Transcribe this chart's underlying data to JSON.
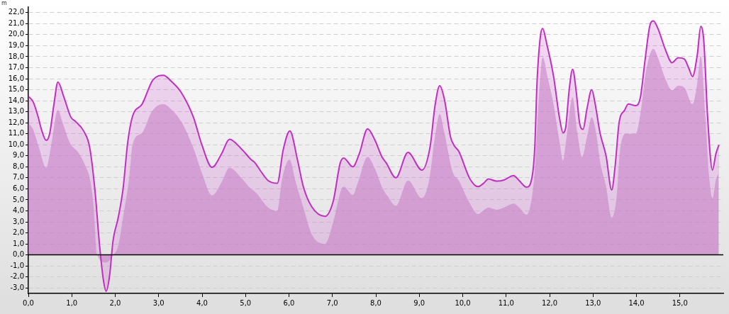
{
  "chart_data": {
    "type": "area",
    "ylabel": "m",
    "xlim": [
      0,
      16
    ],
    "ylim": [
      -3.5,
      22.5
    ],
    "xticks": [
      {
        "value": 0,
        "label": "0,0"
      },
      {
        "value": 1,
        "label": "1,0"
      },
      {
        "value": 2,
        "label": "2,0"
      },
      {
        "value": 3,
        "label": "3,0"
      },
      {
        "value": 4,
        "label": "4,0"
      },
      {
        "value": 5,
        "label": "5,0"
      },
      {
        "value": 6,
        "label": "6,0"
      },
      {
        "value": 7,
        "label": "7,0"
      },
      {
        "value": 8,
        "label": "8,0"
      },
      {
        "value": 9,
        "label": "9,0"
      },
      {
        "value": 10,
        "label": "10,0"
      },
      {
        "value": 11,
        "label": "11,0"
      },
      {
        "value": 12,
        "label": "12,0"
      },
      {
        "value": 13,
        "label": "13,0"
      },
      {
        "value": 14,
        "label": "14,0"
      },
      {
        "value": 15,
        "label": "15,0"
      }
    ],
    "yticks": [
      {
        "value": -3,
        "label": "-3,0"
      },
      {
        "value": -2,
        "label": "-2,0"
      },
      {
        "value": -1,
        "label": "-1,0"
      },
      {
        "value": 0,
        "label": "0,0"
      },
      {
        "value": 1,
        "label": "1,0"
      },
      {
        "value": 2,
        "label": "2,0"
      },
      {
        "value": 3,
        "label": "3,0"
      },
      {
        "value": 4,
        "label": "4,0"
      },
      {
        "value": 5,
        "label": "5,0"
      },
      {
        "value": 6,
        "label": "6,0"
      },
      {
        "value": 7,
        "label": "7,0"
      },
      {
        "value": 8,
        "label": "8,0"
      },
      {
        "value": 9,
        "label": "9,0"
      },
      {
        "value": 10,
        "label": "10,0"
      },
      {
        "value": 11,
        "label": "11,0"
      },
      {
        "value": 12,
        "label": "12,0"
      },
      {
        "value": 13,
        "label": "13,0"
      },
      {
        "value": 14,
        "label": "14,0"
      },
      {
        "value": 15,
        "label": "15,0"
      },
      {
        "value": 16,
        "label": "16,0"
      },
      {
        "value": 17,
        "label": "17,0"
      },
      {
        "value": 18,
        "label": "18,0"
      },
      {
        "value": 19,
        "label": "19,0"
      },
      {
        "value": 20,
        "label": "20,0"
      },
      {
        "value": 21,
        "label": "21,0"
      },
      {
        "value": 22,
        "label": "22,0"
      }
    ],
    "grid": "y",
    "marker": "none",
    "line_style": "solid",
    "ref_lines": [
      {
        "axis": "y",
        "value": 0,
        "color": "#000000"
      }
    ],
    "series": [
      {
        "color": "#c030c0",
        "x": [
          0,
          0.11,
          0.22,
          0.3,
          0.41,
          0.49,
          0.59,
          0.68,
          0.82,
          0.98,
          1.09,
          1.28,
          1.41,
          1.53,
          1.64,
          1.73,
          1.79,
          1.87,
          1.95,
          2.07,
          2.18,
          2.29,
          2.4,
          2.62,
          2.87,
          3.11,
          3.28,
          3.52,
          3.8,
          3.99,
          4.23,
          4.45,
          4.63,
          4.91,
          5.13,
          5.21,
          5.35,
          5.52,
          5.73,
          5.87,
          6.02,
          6.2,
          6.33,
          6.52,
          6.83,
          7.02,
          7.18,
          7.26,
          7.47,
          7.62,
          7.81,
          7.97,
          8.14,
          8.24,
          8.46,
          8.74,
          9.06,
          9.25,
          9.36,
          9.47,
          9.58,
          9.72,
          9.8,
          9.91,
          10.16,
          10.35,
          10.48,
          10.59,
          10.78,
          10.95,
          11.17,
          11.3,
          11.47,
          11.6,
          11.66,
          11.71,
          11.79,
          11.84,
          11.93,
          12.09,
          12.23,
          12.31,
          12.37,
          12.45,
          12.53,
          12.61,
          12.69,
          12.77,
          12.86,
          12.97,
          13.05,
          13.16,
          13.3,
          13.43,
          13.51,
          13.6,
          13.73,
          13.81,
          13.98,
          14.09,
          14.2,
          14.31,
          14.39,
          14.5,
          14.66,
          14.82,
          14.96,
          15.1,
          15.21,
          15.29,
          15.4,
          15.48,
          15.55,
          15.64,
          15.75,
          15.83,
          15.9
        ],
        "values": [
          14.4,
          13.9,
          12.6,
          11.4,
          10.4,
          11,
          13.7,
          15.7,
          14.3,
          12.5,
          12.1,
          11.2,
          9.8,
          6,
          0.85,
          -2.35,
          -3.3,
          -1.9,
          1.3,
          3.4,
          6,
          10.3,
          12.6,
          13.7,
          15.9,
          16.3,
          15.8,
          14.75,
          12.5,
          10.05,
          7.95,
          9.2,
          10.5,
          9.6,
          8.65,
          8.4,
          7.6,
          6.75,
          6.5,
          9.6,
          11.25,
          8.55,
          6.2,
          4.4,
          3.5,
          4.9,
          8.35,
          8.8,
          8,
          9.2,
          11.45,
          10.5,
          8.9,
          8.35,
          7,
          9.3,
          7.7,
          9.85,
          13.5,
          15.35,
          14.1,
          10.7,
          9.95,
          9.4,
          6.95,
          6.2,
          6.5,
          6.9,
          6.7,
          6.8,
          7.2,
          6.75,
          6.15,
          7.15,
          9.85,
          15.6,
          19.9,
          20.55,
          19.25,
          16.25,
          12.4,
          11.1,
          11.55,
          14.95,
          16.85,
          14.95,
          12,
          11.4,
          13.25,
          15,
          13.7,
          11.1,
          9,
          5.9,
          8.1,
          12,
          13.15,
          13.7,
          13.55,
          14.3,
          17.75,
          20.85,
          21.25,
          20.5,
          18.7,
          17.45,
          17.9,
          17.8,
          16.9,
          16.2,
          18.15,
          20.75,
          19.45,
          12.4,
          7.7,
          9.2,
          10
        ]
      },
      {
        "color": "#c890c8",
        "x": [
          0,
          0.11,
          0.24,
          0.41,
          0.52,
          0.68,
          0.79,
          0.96,
          1.15,
          1.31,
          1.42,
          1.5,
          1.58,
          1.79,
          1.96,
          2.07,
          2.18,
          2.33,
          2.4,
          2.62,
          2.84,
          3.1,
          3.28,
          3.52,
          3.8,
          3.99,
          4.23,
          4.45,
          4.63,
          4.91,
          5.11,
          5.24,
          5.52,
          5.73,
          5.84,
          6.01,
          6.17,
          6.33,
          6.52,
          6.83,
          7.02,
          7.21,
          7.26,
          7.47,
          7.59,
          7.81,
          7.97,
          8.16,
          8.27,
          8.46,
          8.74,
          9.06,
          9.23,
          9.36,
          9.47,
          9.58,
          9.77,
          9.91,
          10.16,
          10.35,
          10.48,
          10.59,
          10.78,
          10.95,
          11.17,
          11.3,
          11.47,
          11.57,
          11.66,
          11.74,
          11.84,
          11.96,
          12.09,
          12.23,
          12.31,
          12.39,
          12.53,
          12.64,
          12.75,
          12.86,
          12.97,
          13.08,
          13.16,
          13.3,
          13.43,
          13.54,
          13.62,
          13.76,
          13.98,
          14.09,
          14.22,
          14.39,
          14.5,
          14.66,
          14.82,
          14.96,
          15.1,
          15.29,
          15.4,
          15.48,
          15.59,
          15.67,
          15.75,
          15.83,
          15.89
        ],
        "values": [
          12,
          11.4,
          9.8,
          7.9,
          9.8,
          13.15,
          12,
          10.15,
          9.3,
          8.1,
          6.85,
          4.5,
          0,
          -0.7,
          0,
          0.85,
          3.4,
          7.3,
          10.05,
          11.1,
          13,
          13.7,
          13.25,
          12.1,
          9.7,
          7.5,
          5.4,
          6.6,
          7.9,
          6.95,
          6.05,
          5.65,
          4.3,
          4,
          6.85,
          8.65,
          6.4,
          4.3,
          1.9,
          1,
          3,
          6,
          6.2,
          5.45,
          6.6,
          8.9,
          7.9,
          6,
          5.35,
          4.45,
          6.75,
          5.15,
          6.85,
          10.7,
          12.8,
          11.1,
          7.5,
          6.75,
          4.7,
          3.7,
          4.05,
          4.3,
          4.1,
          4.3,
          4.65,
          4.3,
          3.65,
          4.7,
          7.7,
          13.5,
          17.95,
          16.05,
          13.7,
          10.25,
          8.55,
          10.7,
          14.3,
          11.1,
          8.9,
          10.7,
          12.5,
          10.9,
          8.55,
          6.2,
          3.4,
          5.15,
          9.4,
          11,
          11,
          12.8,
          16.7,
          18.7,
          17.85,
          16.05,
          14.95,
          15.35,
          15.2,
          13.7,
          15.6,
          18.05,
          12.4,
          7.25,
          5.15,
          6.85,
          7.4
        ]
      }
    ]
  }
}
